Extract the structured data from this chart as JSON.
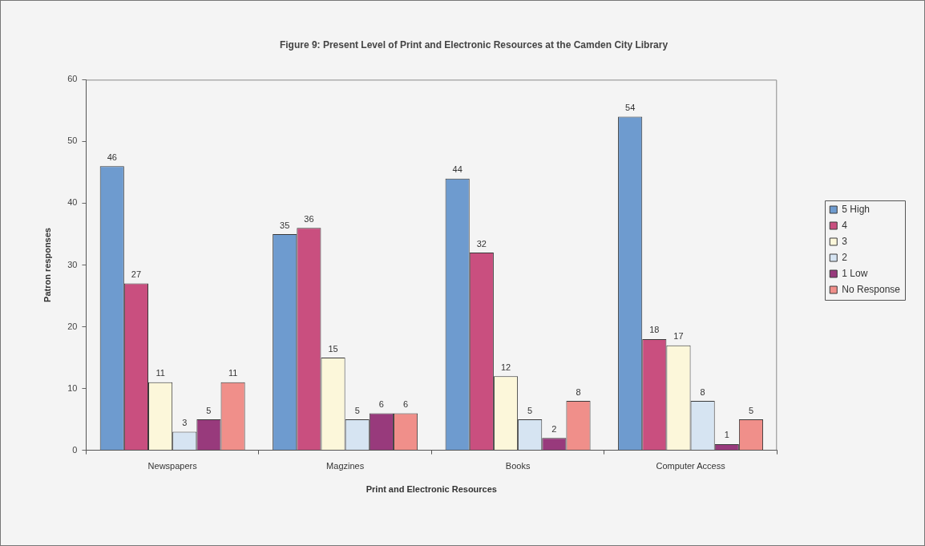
{
  "chart_data": {
    "type": "bar",
    "title": "Figure 9: Present Level of Print and Electronic Resources at the Camden City Library",
    "xlabel": "Print and Electronic Resources",
    "ylabel": "Patron responses",
    "categories": [
      "Newspapers",
      "Magzines",
      "Books",
      "Computer Access"
    ],
    "series": [
      {
        "name": "5 High",
        "color": "#6e9bcf",
        "values": [
          46,
          35,
          44,
          54
        ]
      },
      {
        "name": "4",
        "color": "#c94f7f",
        "values": [
          27,
          36,
          32,
          18
        ]
      },
      {
        "name": "3",
        "color": "#fcf7da",
        "values": [
          11,
          15,
          12,
          17
        ]
      },
      {
        "name": "2",
        "color": "#d6e4f2",
        "values": [
          3,
          5,
          5,
          8
        ]
      },
      {
        "name": "1 Low",
        "color": "#983a7c",
        "values": [
          5,
          6,
          2,
          1
        ]
      },
      {
        "name": "No Response",
        "color": "#f08f8a",
        "values": [
          11,
          6,
          8,
          5
        ]
      }
    ],
    "ylim": [
      0,
      60
    ],
    "yticks": [
      0,
      10,
      20,
      30,
      40,
      50,
      60
    ],
    "grid": false,
    "legend": "right",
    "data_labels": true
  }
}
